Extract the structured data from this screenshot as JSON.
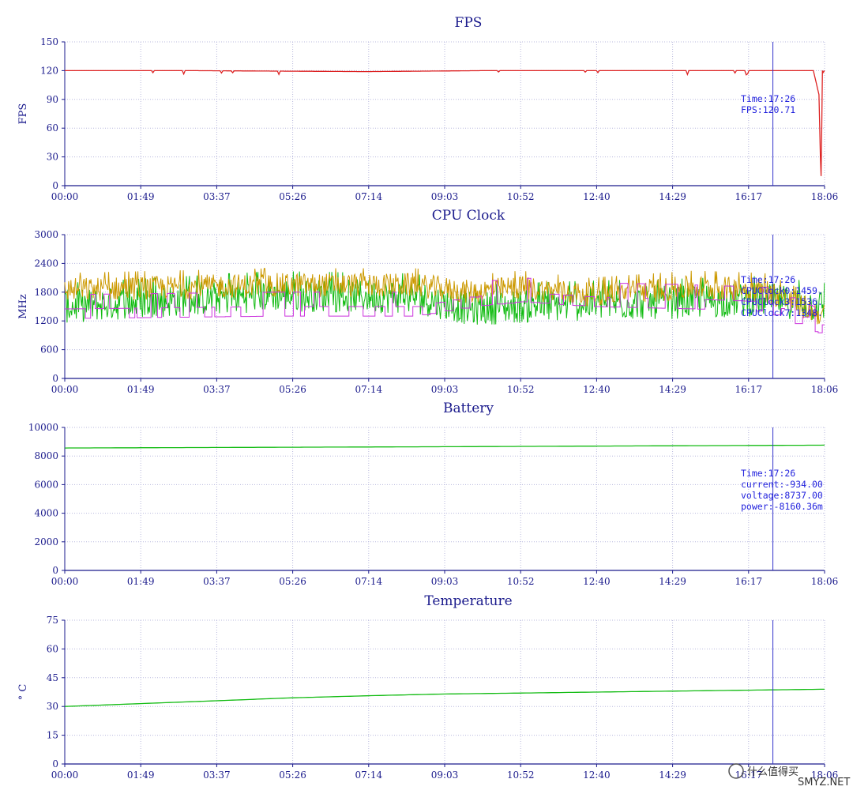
{
  "watermark": {
    "text": "什么值得买",
    "sub": "SMYZ.NET"
  },
  "colors": {
    "axis": "#1a1a8c",
    "grid": "#b8b8dd",
    "cursor": "#3333cc"
  },
  "x_time_labels": [
    "00:00",
    "01:49",
    "03:37",
    "05:26",
    "07:14",
    "09:03",
    "10:52",
    "12:40",
    "14:29",
    "16:17",
    "18:06"
  ],
  "cursor_time": "17:26",
  "chart_data": [
    {
      "type": "line",
      "title": "FPS",
      "ylabel": "FPS",
      "ylim": [
        0,
        150
      ],
      "yticks": [
        0,
        30,
        60,
        90,
        120,
        150
      ],
      "xlim_minutes": [
        0,
        1086
      ],
      "grid": true,
      "annotation": [
        "Time:17:26",
        "FPS:120.71"
      ],
      "series": [
        {
          "color": "#dd2222",
          "kind": "fps",
          "x": [
            0,
            180,
            430,
            600,
            800,
            1070,
            1078,
            1080,
            1081,
            1083,
            1084,
            1086
          ],
          "y": [
            120,
            120,
            119,
            120,
            120,
            120,
            95,
            30,
            10,
            120,
            118,
            120
          ]
        }
      ]
    },
    {
      "type": "line",
      "title": "CPU Clock",
      "ylabel": "MHz",
      "ylim": [
        0,
        3000
      ],
      "yticks": [
        0,
        600,
        1200,
        1800,
        2400,
        3000
      ],
      "xlim_minutes": [
        0,
        1086
      ],
      "grid": true,
      "annotation": [
        "Time:17:26",
        "CPUClock0:1459.",
        "CPUClock3:1536.",
        "CPUClock7:1348."
      ],
      "series": [
        {
          "color": "#11bb11",
          "kind": "noise",
          "base": 1650,
          "amp": 350,
          "x": [
            0,
            300,
            500,
            580,
            650,
            750,
            900,
            1000,
            1086
          ],
          "y": [
            1500,
            1750,
            1700,
            1450,
            1500,
            1550,
            1600,
            1650,
            1500
          ]
        },
        {
          "color": "#cc9900",
          "kind": "noise",
          "base": 1900,
          "amp": 250,
          "x": [
            0,
            300,
            500,
            580,
            650,
            750,
            900,
            1000,
            1086
          ],
          "y": [
            1850,
            1950,
            1950,
            1800,
            1900,
            1750,
            1900,
            1850,
            1300
          ]
        },
        {
          "color": "#cc33dd",
          "kind": "step",
          "base": 1300,
          "amp": 200,
          "x": [
            0,
            300,
            500,
            580,
            650,
            750,
            900,
            1000,
            1086
          ],
          "y": [
            1250,
            1300,
            1300,
            1500,
            1600,
            1500,
            1450,
            1400,
            900
          ]
        }
      ]
    },
    {
      "type": "line",
      "title": "Battery",
      "ylabel": "",
      "ylim": [
        0,
        10000
      ],
      "yticks": [
        0,
        2000,
        4000,
        6000,
        8000,
        10000
      ],
      "xlim_minutes": [
        0,
        1086
      ],
      "grid": true,
      "annotation": [
        "Time:17:26",
        "current:-934.00",
        "voltage:8737.00",
        "power:-8160.36m"
      ],
      "series": [
        {
          "color": "#11bb11",
          "kind": "smooth",
          "x": [
            0,
            543,
            1086
          ],
          "y": [
            8560,
            8650,
            8760
          ]
        }
      ]
    },
    {
      "type": "line",
      "title": "Temperature",
      "ylabel": "° C",
      "ylim": [
        0,
        75
      ],
      "yticks": [
        0,
        15,
        30,
        45,
        60,
        75
      ],
      "xlim_minutes": [
        0,
        1086
      ],
      "grid": true,
      "annotation": [],
      "series": [
        {
          "color": "#11bb11",
          "kind": "smooth",
          "x": [
            0,
            109,
            217,
            326,
            434,
            543,
            652,
            760,
            869,
            977,
            1086
          ],
          "y": [
            30,
            31.5,
            33,
            34.5,
            35.6,
            36.5,
            37,
            37.5,
            38,
            38.5,
            39
          ]
        }
      ]
    }
  ]
}
